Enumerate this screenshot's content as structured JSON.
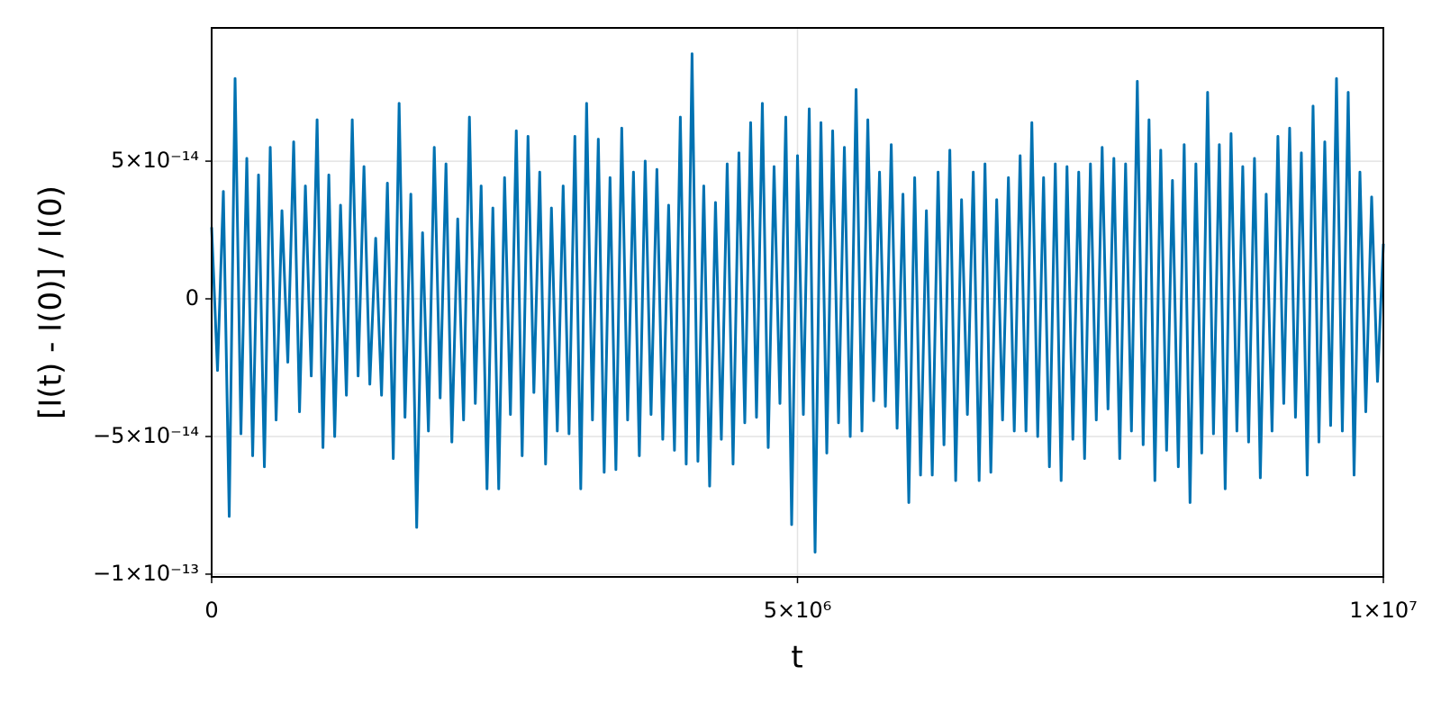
{
  "chart_data": {
    "type": "line",
    "xlabel": "t",
    "ylabel": "[I(t) - I(0)] / I(0)",
    "color": "#0072b2",
    "grid": true,
    "xlim": [
      0,
      10000000
    ],
    "ylim": [
      -1.01e-13,
      9.84e-14
    ],
    "xticks": [
      0,
      {
        "value": 5000000,
        "label": "5×10⁶"
      },
      {
        "value": 10000000,
        "label": "1×10⁷"
      }
    ],
    "yticks": [
      {
        "value": -1e-13,
        "label": "−1×10⁻¹³"
      },
      {
        "value": -5e-14,
        "label": "−5×10⁻¹⁴"
      },
      0,
      {
        "value": 5e-14,
        "label": "5×10⁻¹⁴"
      }
    ],
    "x": [
      0,
      50000,
      100000,
      150000,
      200000,
      250000,
      300000,
      350000,
      400000,
      450000,
      500000,
      550000,
      600000,
      650000,
      700000,
      750000,
      800000,
      850000,
      900000,
      950000,
      1000000,
      1050000,
      1100000,
      1150000,
      1200000,
      1250000,
      1300000,
      1350000,
      1400000,
      1450000,
      1500000,
      1550000,
      1600000,
      1650000,
      1700000,
      1750000,
      1800000,
      1850000,
      1900000,
      1950000,
      2000000,
      2050000,
      2100000,
      2150000,
      2200000,
      2250000,
      2300000,
      2350000,
      2400000,
      2450000,
      2500000,
      2550000,
      2600000,
      2650000,
      2700000,
      2750000,
      2800000,
      2850000,
      2900000,
      2950000,
      3000000,
      3050000,
      3100000,
      3150000,
      3200000,
      3250000,
      3300000,
      3350000,
      3400000,
      3450000,
      3500000,
      3550000,
      3600000,
      3650000,
      3700000,
      3750000,
      3800000,
      3850000,
      3900000,
      3950000,
      4000000,
      4050000,
      4100000,
      4150000,
      4200000,
      4250000,
      4300000,
      4350000,
      4400000,
      4450000,
      4500000,
      4550000,
      4600000,
      4650000,
      4700000,
      4750000,
      4800000,
      4850000,
      4900000,
      4950000,
      5000000,
      5050000,
      5100000,
      5150000,
      5200000,
      5250000,
      5300000,
      5350000,
      5400000,
      5450000,
      5500000,
      5550000,
      5600000,
      5650000,
      5700000,
      5750000,
      5800000,
      5850000,
      5900000,
      5950000,
      6000000,
      6050000,
      6100000,
      6150000,
      6200000,
      6250000,
      6300000,
      6350000,
      6400000,
      6450000,
      6500000,
      6550000,
      6600000,
      6650000,
      6700000,
      6750000,
      6800000,
      6850000,
      6900000,
      6950000,
      7000000,
      7050000,
      7100000,
      7150000,
      7200000,
      7250000,
      7300000,
      7350000,
      7400000,
      7450000,
      7500000,
      7550000,
      7600000,
      7650000,
      7700000,
      7750000,
      7800000,
      7850000,
      7900000,
      7950000,
      8000000,
      8050000,
      8100000,
      8150000,
      8200000,
      8250000,
      8300000,
      8350000,
      8400000,
      8450000,
      8500000,
      8550000,
      8600000,
      8650000,
      8700000,
      8750000,
      8800000,
      8850000,
      8900000,
      8950000,
      9000000,
      9050000,
      9100000,
      9150000,
      9200000,
      9250000,
      9300000,
      9350000,
      9400000,
      9450000,
      9500000,
      9550000,
      9600000,
      9650000,
      9700000,
      9750000,
      9800000,
      9850000,
      9900000,
      9950000,
      10000000
    ],
    "values": [
      2.6e-14,
      -2.6e-14,
      3.9e-14,
      -7.9e-14,
      8e-14,
      -4.9e-14,
      5.1e-14,
      -5.7e-14,
      4.5e-14,
      -6.1e-14,
      5.5e-14,
      -4.4e-14,
      3.2e-14,
      -2.3e-14,
      5.7e-14,
      -4.1e-14,
      4.1e-14,
      -2.8e-14,
      6.5e-14,
      -5.4e-14,
      4.5e-14,
      -5e-14,
      3.4e-14,
      -3.5e-14,
      6.5e-14,
      -2.8e-14,
      4.8e-14,
      -3.1e-14,
      2.2e-14,
      -3.5e-14,
      4.2e-14,
      -5.8e-14,
      7.1e-14,
      -4.3e-14,
      3.8e-14,
      -8.3e-14,
      2.4e-14,
      -4.8e-14,
      5.5e-14,
      -3.6e-14,
      4.9e-14,
      -5.2e-14,
      2.9e-14,
      -4.4e-14,
      6.6e-14,
      -3.8e-14,
      4.1e-14,
      -6.9e-14,
      3.3e-14,
      -6.9e-14,
      4.4e-14,
      -4.2e-14,
      6.1e-14,
      -5.7e-14,
      5.9e-14,
      -3.4e-14,
      4.6e-14,
      -6e-14,
      3.3e-14,
      -4.8e-14,
      4.1e-14,
      -4.9e-14,
      5.9e-14,
      -6.9e-14,
      7.1e-14,
      -4.4e-14,
      5.8e-14,
      -6.3e-14,
      4.4e-14,
      -6.2e-14,
      6.2e-14,
      -4.4e-14,
      4.6e-14,
      -5.7e-14,
      5e-14,
      -4.2e-14,
      4.7e-14,
      -5.1e-14,
      3.4e-14,
      -5.5e-14,
      6.6e-14,
      -6e-14,
      8.9e-14,
      -5.9e-14,
      4.1e-14,
      -6.8e-14,
      3.5e-14,
      -5.1e-14,
      4.9e-14,
      -6e-14,
      5.3e-14,
      -4.5e-14,
      6.4e-14,
      -4.3e-14,
      7.1e-14,
      -5.4e-14,
      4.8e-14,
      -3.8e-14,
      6.6e-14,
      -8.2e-14,
      5.2e-14,
      -4.2e-14,
      6.9e-14,
      -9.2e-14,
      6.4e-14,
      -5.6e-14,
      6.1e-14,
      -4.5e-14,
      5.5e-14,
      -5e-14,
      7.6e-14,
      -4.8e-14,
      6.5e-14,
      -3.7e-14,
      4.6e-14,
      -3.9e-14,
      5.6e-14,
      -4.7e-14,
      3.8e-14,
      -7.4e-14,
      4.4e-14,
      -6.4e-14,
      3.2e-14,
      -6.4e-14,
      4.6e-14,
      -5.3e-14,
      5.4e-14,
      -6.6e-14,
      3.6e-14,
      -4.2e-14,
      4.6e-14,
      -6.6e-14,
      4.9e-14,
      -6.3e-14,
      3.6e-14,
      -4.4e-14,
      4.4e-14,
      -4.8e-14,
      5.2e-14,
      -4.8e-14,
      6.4e-14,
      -5e-14,
      4.4e-14,
      -6.1e-14,
      4.9e-14,
      -6.6e-14,
      4.8e-14,
      -5.1e-14,
      4.6e-14,
      -5.8e-14,
      4.9e-14,
      -4.4e-14,
      5.5e-14,
      -4e-14,
      5.1e-14,
      -5.8e-14,
      4.9e-14,
      -4.8e-14,
      7.9e-14,
      -5.3e-14,
      6.5e-14,
      -6.6e-14,
      5.4e-14,
      -5.5e-14,
      4.3e-14,
      -6.1e-14,
      5.6e-14,
      -7.4e-14,
      4.9e-14,
      -5.6e-14,
      7.5e-14,
      -4.9e-14,
      5.6e-14,
      -6.9e-14,
      6e-14,
      -4.8e-14,
      4.8e-14,
      -5.2e-14,
      5.1e-14,
      -6.5e-14,
      3.8e-14,
      -4.8e-14,
      5.9e-14,
      -3.8e-14,
      6.2e-14,
      -4.3e-14,
      5.3e-14,
      -6.4e-14,
      7e-14,
      -5.2e-14,
      5.7e-14,
      -4.6e-14,
      8e-14,
      -4.8e-14,
      7.5e-14,
      -6.4e-14,
      4.6e-14,
      -4.1e-14,
      3.7e-14,
      -3e-14,
      2e-14
    ]
  }
}
